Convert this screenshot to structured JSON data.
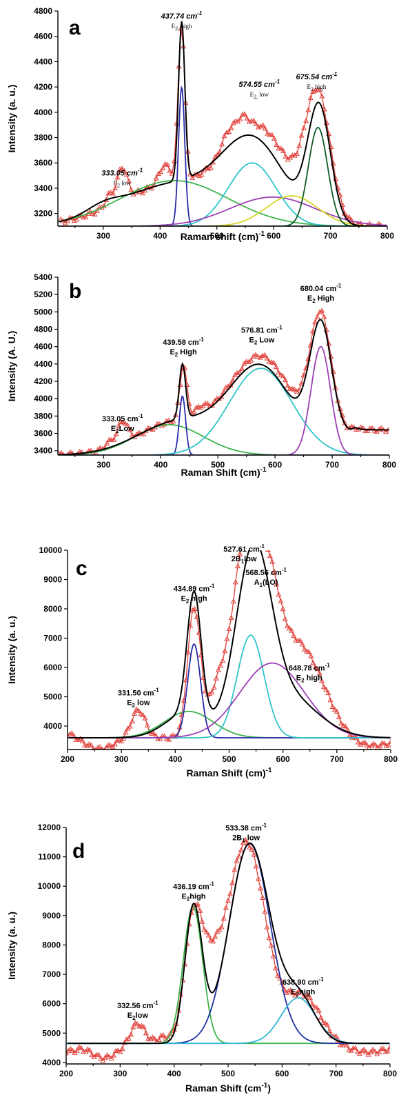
{
  "colors": {
    "data_marker": "#e0403a",
    "fit": "#000000",
    "green": "#3cb44b",
    "navy": "#2a2aa8",
    "cyan": "#2ec4c8",
    "purple": "#9b3fb5",
    "yellow": "#d8d820",
    "darkgreen": "#0c5a22",
    "blue2": "#1e2fa0",
    "lightblue": "#2fb6d6"
  },
  "chart_data": [
    {
      "type": "line",
      "panel_label": "a",
      "xlabel": "Raman shift (cm)",
      "xlabel_sup": "-1",
      "ylabel": "Intensity (a. u.)",
      "xlim": [
        220,
        800
      ],
      "ylim": [
        3100,
        4800
      ],
      "xticks": [
        300,
        400,
        500,
        600,
        700,
        800
      ],
      "yticks": [
        3200,
        3400,
        3600,
        3800,
        4000,
        4200,
        4400,
        4600,
        4800
      ],
      "baseline": 3100,
      "annotations": [
        {
          "x": 333.05,
          "y": 3500,
          "value": "333.05 cm",
          "sup": "-1",
          "mode": "E",
          "mode_sub": "2",
          "mode_tail": " low"
        },
        {
          "x": 437.74,
          "y": 4740,
          "value": "437.74 cm",
          "sup": "-1",
          "mode": "E",
          "mode_sub": "2,",
          "mode_tail": " high"
        },
        {
          "x": 574.55,
          "y": 4200,
          "value": "574.55 cm",
          "sup": "-1",
          "mode": "E",
          "mode_sub": "2,",
          "mode_tail": " low"
        },
        {
          "x": 675.54,
          "y": 4260,
          "value": "675.54 cm",
          "sup": "-1",
          "mode": "E",
          "mode_sub": "2",
          "mode_tail": " high"
        }
      ],
      "components": [
        {
          "color": "green",
          "peaks": [
            {
              "c": 425,
              "a": 360,
              "w": 95
            }
          ]
        },
        {
          "color": "navy",
          "peaks": [
            {
              "c": 438,
              "a": 1100,
              "w": 5.5
            }
          ]
        },
        {
          "color": "cyan",
          "peaks": [
            {
              "c": 562,
              "a": 500,
              "w": 42
            }
          ]
        },
        {
          "color": "purple",
          "peaks": [
            {
              "c": 598,
              "a": 230,
              "w": 75
            }
          ]
        },
        {
          "color": "yellow",
          "peaks": [
            {
              "c": 632,
              "a": 240,
              "w": 45
            }
          ]
        },
        {
          "color": "darkgreen",
          "peaks": [
            {
              "c": 678,
              "a": 780,
              "w": 17
            }
          ]
        }
      ],
      "fit": {
        "peaks": [
          {
            "c": 438,
            "a": 1250,
            "w": 5.5
          },
          {
            "c": 425,
            "a": 330,
            "w": 95
          },
          {
            "c": 565,
            "a": 600,
            "w": 55
          },
          {
            "c": 680,
            "a": 900,
            "w": 20
          },
          {
            "c": 300,
            "a": 60,
            "w": 30
          }
        ]
      },
      "data": {
        "peaks": [
          {
            "c": 437.74,
            "a": 1230,
            "w": 6
          },
          {
            "c": 333.05,
            "a": 260,
            "w": 9
          },
          {
            "c": 425,
            "a": 330,
            "w": 95
          },
          {
            "c": 574,
            "a": 700,
            "w": 55
          },
          {
            "c": 678,
            "a": 960,
            "w": 22
          },
          {
            "c": 520,
            "a": 120,
            "w": 12
          },
          {
            "c": 408,
            "a": 150,
            "w": 10
          },
          {
            "c": 310,
            "a": 80,
            "w": 7
          },
          {
            "c": 545,
            "a": 100,
            "w": 10
          }
        ],
        "xmin": 225,
        "xmax": 800,
        "step": 4
      }
    },
    {
      "type": "line",
      "panel_label": "b",
      "xlabel": "Raman Shift (cm)",
      "xlabel_sup": "-1",
      "ylabel": "Intensity (A. U.)",
      "xlim": [
        220,
        800
      ],
      "ylim": [
        3350,
        5400
      ],
      "xticks": [
        300,
        400,
        500,
        600,
        700,
        800
      ],
      "yticks": [
        3400,
        3600,
        3800,
        4000,
        4200,
        4400,
        4600,
        4800,
        5000,
        5200,
        5400
      ],
      "baseline": 3350,
      "annotations": [
        {
          "x": 333.05,
          "y": 3740,
          "value": "333.05 cm",
          "sup": "-1",
          "mode": "E",
          "mode_sub": "2",
          "mode_tail": "Low"
        },
        {
          "x": 439.58,
          "y": 4620,
          "value": "439.58 cm",
          "sup": "-1",
          "mode": "E",
          "mode_sub": "2",
          "mode_tail": " High"
        },
        {
          "x": 576.81,
          "y": 4760,
          "value": "576.81 cm",
          "sup": "-1",
          "mode": "E",
          "mode_sub": "2",
          "mode_tail": " Low"
        },
        {
          "x": 680.04,
          "y": 5240,
          "value": "680.04 cm",
          "sup": "-1",
          "mode": "E",
          "mode_sub": "2",
          "mode_tail": " High"
        }
      ],
      "components": [
        {
          "color": "green",
          "peaks": [
            {
              "c": 415,
              "a": 350,
              "w": 60
            }
          ]
        },
        {
          "color": "navy",
          "peaks": [
            {
              "c": 438,
              "a": 680,
              "w": 5.5
            }
          ]
        },
        {
          "color": "cyan",
          "peaks": [
            {
              "c": 575,
              "a": 1000,
              "w": 55
            }
          ]
        },
        {
          "color": "purple",
          "peaks": [
            {
              "c": 680,
              "a": 1250,
              "w": 17
            }
          ]
        }
      ],
      "fit": {
        "peaks": [
          {
            "c": 438,
            "a": 630,
            "w": 5.5
          },
          {
            "c": 430,
            "a": 380,
            "w": 70
          },
          {
            "c": 575,
            "a": 1000,
            "w": 55
          },
          {
            "c": 681,
            "a": 1400,
            "w": 20
          }
        ],
        "offset": 290,
        "offset_from": 700
      },
      "data": {
        "peaks": [
          {
            "c": 439.58,
            "a": 620,
            "w": 6
          },
          {
            "c": 333.05,
            "a": 250,
            "w": 9
          },
          {
            "c": 430,
            "a": 380,
            "w": 70
          },
          {
            "c": 576.81,
            "a": 1100,
            "w": 55
          },
          {
            "c": 681,
            "a": 1470,
            "w": 20
          },
          {
            "c": 310,
            "a": 60,
            "w": 7
          },
          {
            "c": 470,
            "a": 80,
            "w": 10
          }
        ],
        "offset": 290,
        "offset_from": 700,
        "xmin": 222,
        "xmax": 800,
        "step": 4
      }
    },
    {
      "type": "line",
      "panel_label": "c",
      "xlabel": "Raman Shift (cm)",
      "xlabel_sup": "-1",
      "ylabel": "Intensity (a. u.)",
      "xlim": [
        200,
        800
      ],
      "ylim": [
        3200,
        10000
      ],
      "xticks": [
        200,
        300,
        400,
        500,
        600,
        700,
        800
      ],
      "yticks": [
        4000,
        5000,
        6000,
        7000,
        8000,
        9000,
        10000
      ],
      "baseline": 3600,
      "annotations": [
        {
          "x": 331.5,
          "y": 5050,
          "value": "331.50 cm",
          "sup": "-1",
          "mode": "E",
          "mode_sub": "2",
          "mode_tail": " low"
        },
        {
          "x": 434.89,
          "y": 8600,
          "value": "434.89 cm",
          "sup": "-1",
          "mode": "E",
          "mode_sub": "2",
          "mode_tail": " high"
        },
        {
          "x": 527.61,
          "y": 9950,
          "value": "527.61 cm",
          "sup": "-1",
          "mode": "2B",
          "mode_sub": "1",
          "mode_tail": "low"
        },
        {
          "x": 568.56,
          "y": 9150,
          "value": "568.56 cm",
          "sup": "-1",
          "mode": "A",
          "mode_sub": "1",
          "mode_tail": "(LO)"
        },
        {
          "x": 648.78,
          "y": 5900,
          "value": "648.78 cm",
          "sup": "-1",
          "mode": "E",
          "mode_sub": "2",
          "mode_tail": " high"
        }
      ],
      "components": [
        {
          "color": "green",
          "peaks": [
            {
              "c": 425,
              "a": 900,
              "w": 45
            }
          ]
        },
        {
          "color": "navy",
          "peaks": [
            {
              "c": 435,
              "a": 3200,
              "w": 12
            }
          ]
        },
        {
          "color": "cyan",
          "peaks": [
            {
              "c": 540,
              "a": 3500,
              "w": 25
            }
          ]
        },
        {
          "color": "purple",
          "peaks": [
            {
              "c": 580,
              "a": 2550,
              "w": 60
            }
          ]
        }
      ],
      "fit": {
        "peaks": [
          {
            "c": 435,
            "a": 4200,
            "w": 13
          },
          {
            "c": 545,
            "a": 5700,
            "w": 32
          },
          {
            "c": 600,
            "a": 1500,
            "w": 60
          },
          {
            "c": 420,
            "a": 800,
            "w": 40
          }
        ]
      },
      "data": {
        "peaks": [
          {
            "c": 434.89,
            "a": 4400,
            "w": 12
          },
          {
            "c": 331.5,
            "a": 950,
            "w": 13
          },
          {
            "c": 527.61,
            "a": 5900,
            "w": 22
          },
          {
            "c": 568.56,
            "a": 3900,
            "w": 22
          },
          {
            "c": 648.78,
            "a": 1900,
            "w": 40
          },
          {
            "c": 480,
            "a": 1650,
            "w": 18
          },
          {
            "c": 600,
            "a": 2000,
            "w": 40
          }
        ],
        "offset": 0,
        "bumps": [
          {
            "c": 200,
            "a": 150,
            "w": 15
          },
          {
            "c": 260,
            "a": -380,
            "w": 25
          },
          {
            "c": 760,
            "a": -300,
            "w": 40
          }
        ],
        "xmin": 200,
        "xmax": 800,
        "step": 4
      }
    },
    {
      "type": "line",
      "panel_label": "d",
      "xlabel": "Raman Shift (cm",
      "xlabel_sup": "-1",
      "xlabel_tail": ")",
      "ylabel": "Intensity (a. u.)",
      "xlim": [
        200,
        800
      ],
      "ylim": [
        3950,
        12000
      ],
      "xticks": [
        200,
        300,
        400,
        500,
        600,
        700,
        800
      ],
      "yticks": [
        4000,
        5000,
        6000,
        7000,
        8000,
        9000,
        10000,
        11000,
        12000
      ],
      "baseline": 4650,
      "annotations": [
        {
          "x": 332.56,
          "y": 5850,
          "value": "332.56 cm",
          "sup": "-1",
          "mode": "E",
          "mode_sub": "2",
          "mode_tail": "low"
        },
        {
          "x": 436.19,
          "y": 9900,
          "value": "436.19 cm",
          "sup": "-1",
          "mode": "E",
          "mode_sub": "2",
          "mode_tail": "high"
        },
        {
          "x": 533.38,
          "y": 11900,
          "value": "533.38 cm",
          "sup": "-1",
          "mode": "2B",
          "mode_sub": "1",
          "mode_tail": " low"
        },
        {
          "x": 638.9,
          "y": 6650,
          "value": "638.90 cm",
          "sup": "-1",
          "mode": "E",
          "mode_sub": "2",
          "mode_tail": "high"
        }
      ],
      "components": [
        {
          "color": "green",
          "peaks": [
            {
              "c": 435,
              "a": 4650,
              "w": 18
            }
          ]
        },
        {
          "color": "blue2",
          "peaks": [
            {
              "c": 540,
              "a": 6800,
              "w": 38
            }
          ]
        },
        {
          "color": "lightblue",
          "peaks": [
            {
              "c": 630,
              "a": 1550,
              "w": 32
            }
          ]
        }
      ],
      "fit": {
        "peaks": [
          {
            "c": 436,
            "a": 4600,
            "w": 16
          },
          {
            "c": 540,
            "a": 6800,
            "w": 38
          },
          {
            "c": 632,
            "a": 1500,
            "w": 30
          }
        ]
      },
      "data": {
        "peaks": [
          {
            "c": 436.19,
            "a": 4250,
            "w": 17
          },
          {
            "c": 533.38,
            "a": 6850,
            "w": 36
          },
          {
            "c": 332.56,
            "a": 700,
            "w": 13
          },
          {
            "c": 638.9,
            "a": 1600,
            "w": 32
          },
          {
            "c": 470,
            "a": 1500,
            "w": 18
          },
          {
            "c": 380,
            "a": 200,
            "w": 12
          }
        ],
        "offset": 0,
        "bumps": [
          {
            "c": 270,
            "a": -500,
            "w": 25
          },
          {
            "c": 205,
            "a": -250,
            "w": 15
          },
          {
            "c": 760,
            "a": -300,
            "w": 40
          }
        ],
        "xmin": 200,
        "xmax": 800,
        "step": 4
      }
    }
  ]
}
